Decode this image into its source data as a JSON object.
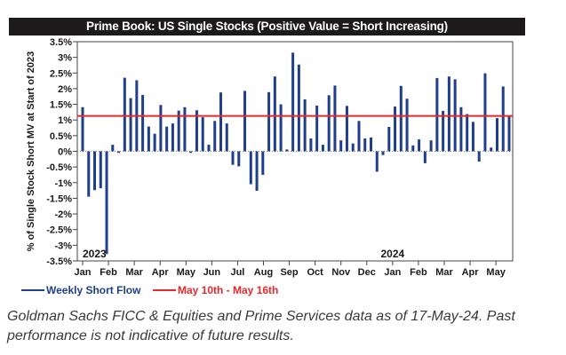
{
  "chart_data": {
    "type": "bar",
    "title": "Prime Book: US Single Stocks (Positive Value = Short Increasing)",
    "xlabel": "",
    "ylabel": "% of Single Stock Short MV at Start of 2023",
    "ylim": [
      -3.5,
      3.5
    ],
    "yticks": [
      3.5,
      3,
      2.5,
      2,
      1.5,
      1,
      0.5,
      0,
      -0.5,
      -1,
      -1.5,
      -2,
      -2.5,
      -3,
      -3.5
    ],
    "ytick_labels": [
      "3.5%",
      "3%",
      "2.5%",
      "2%",
      "1.5%",
      "1%",
      "0.5%",
      "0%",
      "-0.5%",
      "-1%",
      "-1.5%",
      "-2%",
      "-2.5%",
      "-3%",
      "-3.5%"
    ],
    "grid": false,
    "x_month_labels": [
      "Jan",
      "Feb",
      "Mar",
      "Apr",
      "May",
      "Jun",
      "Jul",
      "Aug",
      "Sep",
      "Oct",
      "Nov",
      "Dec",
      "Jan",
      "Feb",
      "Mar",
      "Apr",
      "May"
    ],
    "x_month_week_index": [
      0,
      4.3,
      8.6,
      12.9,
      17.2,
      21.5,
      25.8,
      30.1,
      34.4,
      38.7,
      43,
      47.3,
      51.6,
      55.9,
      60.2,
      64.5,
      68.8
    ],
    "year_labels": [
      {
        "text": "2023",
        "week_index": 0
      },
      {
        "text": "2024",
        "week_index": 51.6
      }
    ],
    "series": [
      {
        "name": "Weekly Short Flow",
        "type": "bar",
        "color": "#1f3f8a",
        "values": [
          1.41,
          -1.45,
          -1.24,
          -1.18,
          -3.28,
          0.21,
          -0.05,
          2.35,
          1.7,
          2.27,
          1.8,
          0.79,
          0.56,
          1.48,
          0.79,
          0.89,
          1.3,
          1.41,
          -0.05,
          1.31,
          1.09,
          0.21,
          0.97,
          1.88,
          0.89,
          -0.43,
          -0.48,
          1.93,
          -1.05,
          -1.26,
          -0.75,
          1.89,
          2.39,
          1.5,
          0.06,
          3.15,
          2.77,
          1.66,
          0.41,
          1.46,
          0.21,
          1.79,
          2.1,
          0.35,
          1.45,
          0.25,
          0.97,
          0.41,
          0.44,
          -0.65,
          -0.12,
          0.78,
          1.43,
          2.09,
          1.68,
          0.19,
          0.38,
          -0.38,
          0.35,
          2.34,
          1.29,
          2.39,
          2.3,
          1.41,
          1.19,
          0.94,
          -0.33,
          2.49,
          0.12,
          1.06,
          2.07,
          1.11
        ]
      },
      {
        "name": "May 10th - May 16th",
        "type": "hline",
        "color": "#e8282b",
        "value": 1.13
      }
    ],
    "legend": {
      "position": "bottom-left",
      "entries": [
        "Weekly Short Flow",
        "May 10th - May 16th"
      ]
    }
  },
  "caption": "Goldman Sachs FICC & Equities and Prime Services data as of 17-May-24. Past performance is not indicative of future results."
}
